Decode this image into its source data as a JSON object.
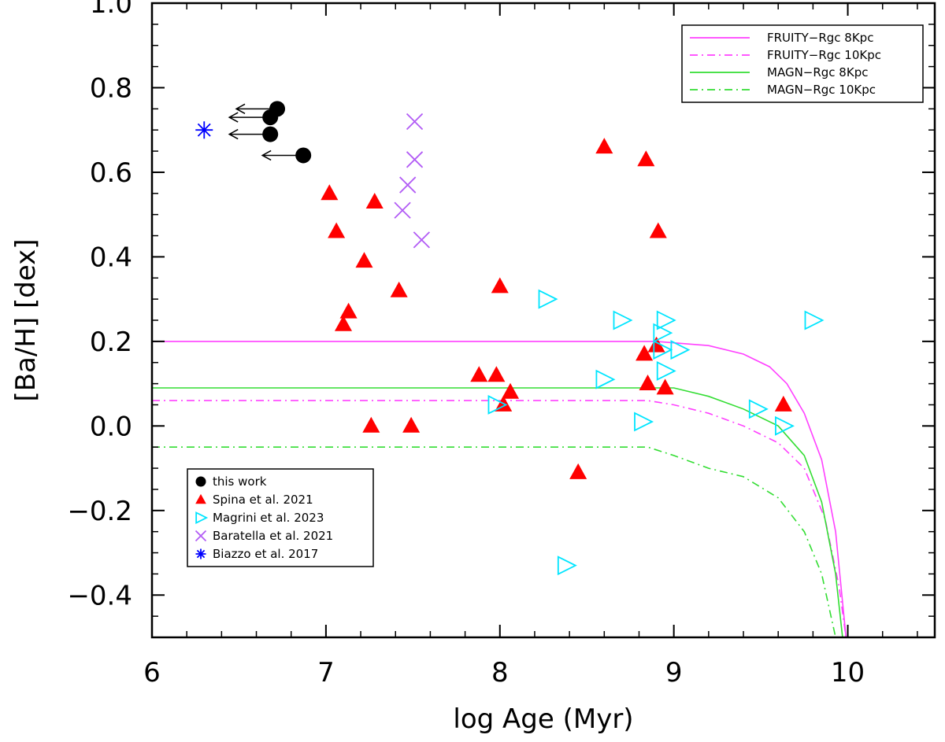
{
  "chart_data": {
    "type": "scatter",
    "xlabel": "log Age (Myr)",
    "ylabel": "[Ba/H] [dex]",
    "xlim": [
      6,
      10.5
    ],
    "ylim": [
      -0.5,
      1.0
    ],
    "x_ticks": [
      6,
      7,
      8,
      9,
      10
    ],
    "x_tick_labels": [
      "6",
      "7",
      "8",
      "9",
      "10"
    ],
    "y_ticks": [
      1.0,
      0.8,
      0.6,
      0.4,
      0.2,
      0.0,
      -0.2,
      -0.4
    ],
    "y_tick_labels": [
      "1.0",
      "0.8",
      "0.6",
      "0.4",
      "0.2",
      "0.0",
      "−0.2",
      "−0.4"
    ],
    "legend_points_position": "bottom-left",
    "legend_lines_position": "top-right",
    "grid": false,
    "series": [
      {
        "name": "this work",
        "marker": "filled-circle",
        "color": "#000000",
        "upper_limit_arrows": true,
        "points": [
          [
            6.72,
            0.75
          ],
          [
            6.68,
            0.73
          ],
          [
            6.68,
            0.69
          ],
          [
            6.87,
            0.64
          ]
        ]
      },
      {
        "name": "Spina et al. 2021",
        "marker": "filled-triangle",
        "color": "#ff0000",
        "points": [
          [
            7.02,
            0.55
          ],
          [
            7.06,
            0.46
          ],
          [
            7.22,
            0.39
          ],
          [
            7.28,
            0.53
          ],
          [
            7.42,
            0.32
          ],
          [
            7.13,
            0.27
          ],
          [
            7.1,
            0.24
          ],
          [
            7.26,
            0.0
          ],
          [
            7.49,
            0.0
          ],
          [
            7.88,
            0.12
          ],
          [
            7.98,
            0.12
          ],
          [
            8.0,
            0.33
          ],
          [
            8.02,
            0.05
          ],
          [
            8.06,
            0.08
          ],
          [
            8.45,
            -0.11
          ],
          [
            8.6,
            0.66
          ],
          [
            8.84,
            0.63
          ],
          [
            8.91,
            0.46
          ],
          [
            8.83,
            0.17
          ],
          [
            8.9,
            0.19
          ],
          [
            8.85,
            0.1
          ],
          [
            8.95,
            0.09
          ],
          [
            9.63,
            0.05
          ]
        ]
      },
      {
        "name": "Magrini et al. 2023",
        "marker": "open-triangle-right",
        "color": "#00e5ff",
        "points": [
          [
            8.27,
            0.3
          ],
          [
            8.7,
            0.25
          ],
          [
            8.95,
            0.25
          ],
          [
            8.93,
            0.22
          ],
          [
            9.03,
            0.18
          ],
          [
            8.93,
            0.18
          ],
          [
            8.95,
            0.13
          ],
          [
            8.6,
            0.11
          ],
          [
            7.98,
            0.05
          ],
          [
            8.82,
            0.01
          ],
          [
            9.48,
            0.04
          ],
          [
            9.63,
            0.0
          ],
          [
            9.8,
            0.25
          ],
          [
            8.38,
            -0.33
          ]
        ]
      },
      {
        "name": "Baratella et al. 2021",
        "marker": "x",
        "color": "#b25cf5",
        "points": [
          [
            7.51,
            0.72
          ],
          [
            7.51,
            0.63
          ],
          [
            7.47,
            0.57
          ],
          [
            7.44,
            0.51
          ],
          [
            7.55,
            0.44
          ]
        ]
      },
      {
        "name": "Biazzo et al. 2017",
        "marker": "asterisk",
        "color": "#0000ff",
        "points": [
          [
            6.3,
            0.7
          ]
        ]
      }
    ],
    "lines": [
      {
        "name": "FRUITY−Rgc 8Kpc",
        "color": "#ff40ff",
        "dash": "solid",
        "points": [
          [
            6.0,
            0.2
          ],
          [
            8.9,
            0.2
          ],
          [
            9.2,
            0.19
          ],
          [
            9.4,
            0.17
          ],
          [
            9.55,
            0.14
          ],
          [
            9.65,
            0.1
          ],
          [
            9.75,
            0.03
          ],
          [
            9.85,
            -0.08
          ],
          [
            9.93,
            -0.25
          ],
          [
            9.99,
            -0.5
          ]
        ]
      },
      {
        "name": "FRUITY−Rgc 10Kpc",
        "color": "#ff40ff",
        "dash": "dashdot",
        "points": [
          [
            6.0,
            0.06
          ],
          [
            8.85,
            0.06
          ],
          [
            9.0,
            0.05
          ],
          [
            9.2,
            0.03
          ],
          [
            9.4,
            0.0
          ],
          [
            9.6,
            -0.04
          ],
          [
            9.75,
            -0.1
          ],
          [
            9.87,
            -0.22
          ],
          [
            9.95,
            -0.38
          ],
          [
            9.99,
            -0.5
          ]
        ]
      },
      {
        "name": "MAGN−Rgc 8Kpc",
        "color": "#33dd33",
        "dash": "solid",
        "points": [
          [
            6.0,
            0.09
          ],
          [
            9.0,
            0.09
          ],
          [
            9.2,
            0.07
          ],
          [
            9.4,
            0.04
          ],
          [
            9.6,
            0.0
          ],
          [
            9.75,
            -0.07
          ],
          [
            9.85,
            -0.18
          ],
          [
            9.93,
            -0.35
          ],
          [
            9.97,
            -0.5
          ]
        ]
      },
      {
        "name": "MAGN−Rgc 10Kpc",
        "color": "#33dd33",
        "dash": "dashdot",
        "points": [
          [
            6.0,
            -0.05
          ],
          [
            8.85,
            -0.05
          ],
          [
            9.0,
            -0.07
          ],
          [
            9.2,
            -0.1
          ],
          [
            9.4,
            -0.12
          ],
          [
            9.6,
            -0.17
          ],
          [
            9.75,
            -0.25
          ],
          [
            9.85,
            -0.35
          ],
          [
            9.93,
            -0.5
          ]
        ]
      }
    ]
  }
}
